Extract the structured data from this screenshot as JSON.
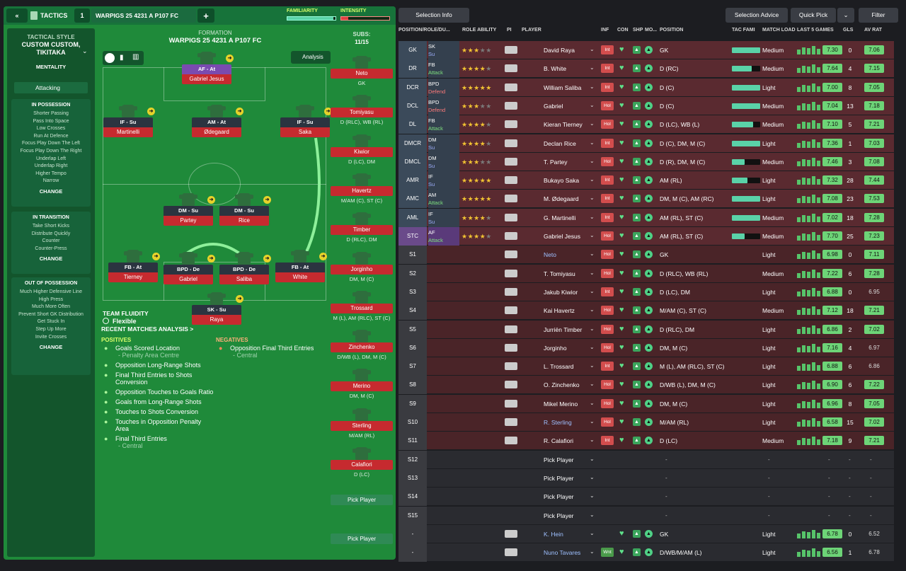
{
  "header": {
    "back": "«",
    "tactics_label": "TACTICS",
    "slot": "1",
    "tactic_name": "WARPIGS 25 4231  A P107 FC",
    "add": "+",
    "familiarity_label": "FAMILIARITY",
    "intensity_label": "INTENSITY",
    "familiarity_level": 0.95,
    "intensity_level": 0.15
  },
  "sidebar": {
    "style_title": "TACTICAL STYLE",
    "style_name": "CUSTOM CUSTOM, TIKITAKA",
    "mentality_label": "MENTALITY",
    "mentality_value": "Attacking",
    "in_possession": {
      "title": "IN POSSESSION",
      "items": [
        "Shorter Passing",
        "Pass Into Space",
        "Low Crosses",
        "Run At Defence",
        "Focus Play Down The Left",
        "Focus Play Down The Right",
        "Underlap Left",
        "Underlap Right",
        "Higher Tempo",
        "Narrow"
      ],
      "change": "CHANGE"
    },
    "in_transition": {
      "title": "IN TRANSITION",
      "items": [
        "Take Short Kicks",
        "Distribute Quickly",
        "Counter",
        "Counter-Press"
      ],
      "change": "CHANGE"
    },
    "out_of_possession": {
      "title": "OUT OF POSSESSION",
      "items": [
        "Much Higher Defensive Line",
        "High Press",
        "Much More Often",
        "Prevent Short GK Distribution",
        "Get Stuck In",
        "Step Up More",
        "Invite Crosses"
      ],
      "change": "CHANGE"
    }
  },
  "formation": {
    "label": "FORMATION",
    "name": "WARPIGS 25 4231  A P107 FC",
    "analysis": "Analysis",
    "subs_label": "SUBS:",
    "subs_count": "11/15",
    "fluidity_label": "TEAM FLUIDITY",
    "fluidity_value": "Flexible"
  },
  "pitch_players": [
    {
      "role": "AF - At",
      "name": "Gabriel Jesus"
    },
    {
      "role": "IF - Su",
      "name": "Martinelli"
    },
    {
      "role": "AM - At",
      "name": "Ødegaard"
    },
    {
      "role": "IF - Su",
      "name": "Saka"
    },
    {
      "role": "DM - Su",
      "name": "Partey"
    },
    {
      "role": "DM - Su",
      "name": "Rice"
    },
    {
      "role": "FB - At",
      "name": "Tierney"
    },
    {
      "role": "BPD - De",
      "name": "Gabriel"
    },
    {
      "role": "BPD - De",
      "name": "Saliba"
    },
    {
      "role": "FB - At",
      "name": "White"
    },
    {
      "role": "SK - Su",
      "name": "Raya"
    }
  ],
  "subs": [
    {
      "name": "Neto",
      "pos": "GK"
    },
    {
      "name": "Tomiyasu",
      "pos": "D (RLC), WB (RL)"
    },
    {
      "name": "Kiwior",
      "pos": "D (LC), DM"
    },
    {
      "name": "Havertz",
      "pos": "M/AM (C), ST (C)"
    },
    {
      "name": "Timber",
      "pos": "D (RLC), DM"
    },
    {
      "name": "Jorginho",
      "pos": "DM, M (C)"
    },
    {
      "name": "Trossard",
      "pos": "M (L), AM (RLC), ST (C)"
    },
    {
      "name": "Zinchenko",
      "pos": "D/WB (L), DM, M (C)"
    },
    {
      "name": "Merino",
      "pos": "DM, M (C)"
    },
    {
      "name": "Sterling",
      "pos": "M/AM (RL)"
    },
    {
      "name": "Calafiori",
      "pos": "D (LC)"
    }
  ],
  "pick_player": "Pick Player",
  "analysis": {
    "title": "RECENT MATCHES ANALYSIS >",
    "positives_label": "POSITIVES",
    "positives": [
      {
        "t": "Goals Scored Location",
        "s": "- Penalty Area Centre"
      },
      {
        "t": "Opposition Long-Range Shots",
        "s": ""
      },
      {
        "t": "Final Third Entries to Shots Conversion",
        "s": ""
      },
      {
        "t": "Opposition Touches to Goals Ratio",
        "s": ""
      },
      {
        "t": "Goals from Long-Range Shots",
        "s": ""
      },
      {
        "t": "Touches to Shots Conversion",
        "s": ""
      },
      {
        "t": "Touches in Opposition Penalty Area",
        "s": ""
      },
      {
        "t": "Final Third Entries",
        "s": "- Central"
      }
    ],
    "negatives_label": "NEGATIVES",
    "negatives": [
      {
        "t": "Opposition Final Third Entries",
        "s": "- Central"
      }
    ]
  },
  "toolbar": {
    "selection_info": "Selection Info",
    "selection_advice": "Selection Advice",
    "quick_pick": "Quick Pick",
    "filter": "Filter"
  },
  "columns": [
    "POSITION/ROLE/DU...",
    "ROLE ABILITY",
    "PI",
    "PLAYER",
    "INF",
    "CON",
    "SHP",
    "MO...",
    "POSITION",
    "TAC FAMI",
    "MATCH LOAD",
    "LAST 5 GAMES",
    "GLS",
    "AV RAT"
  ],
  "rows": [
    {
      "pos": "GK",
      "role": "SK",
      "duty": "Su",
      "stars": 3,
      "player": "David Raya",
      "inf": "Int",
      "position": "GK",
      "fam": 1.0,
      "load": "Medium",
      "rating": "7.30",
      "gls": "0",
      "av": "7.06"
    },
    {
      "pos": "DR",
      "role": "FB",
      "duty": "Attack",
      "stars": 4,
      "player": "B. White",
      "inf": "Int",
      "position": "D (RC)",
      "fam": 0.7,
      "load": "Medium",
      "rating": "7.64",
      "gls": "4",
      "av": "7.15"
    },
    {
      "pos": "DCR",
      "role": "BPD",
      "duty": "Defend",
      "stars": 5,
      "player": "William Saliba",
      "inf": "Int",
      "position": "D (C)",
      "fam": 1.0,
      "load": "Light",
      "rating": "7.00",
      "gls": "8",
      "av": "7.05"
    },
    {
      "pos": "DCL",
      "role": "BPD",
      "duty": "Defend",
      "stars": 3,
      "player": "Gabriel",
      "inf": "Hol",
      "position": "D (C)",
      "fam": 1.0,
      "load": "Medium",
      "rating": "7.04",
      "gls": "13",
      "av": "7.18"
    },
    {
      "pos": "DL",
      "role": "FB",
      "duty": "Attack",
      "stars": 4,
      "player": "Kieran Tierney",
      "inf": "Hol",
      "position": "D (LC), WB (L)",
      "fam": 0.75,
      "load": "Medium",
      "rating": "7.10",
      "gls": "5",
      "av": "7.21"
    },
    {
      "pos": "DMCR",
      "role": "DM",
      "duty": "Su",
      "stars": 4,
      "player": "Declan Rice",
      "inf": "Int",
      "position": "D (C), DM, M (C)",
      "fam": 1.0,
      "load": "Light",
      "rating": "7.36",
      "gls": "1",
      "av": "7.03"
    },
    {
      "pos": "DMCL",
      "role": "DM",
      "duty": "Su",
      "stars": 3,
      "player": "T. Partey",
      "inf": "Hol",
      "position": "D (R), DM, M (C)",
      "fam": 0.45,
      "load": "Medium",
      "rating": "7.46",
      "gls": "3",
      "av": "7.08"
    },
    {
      "pos": "AMR",
      "role": "IF",
      "duty": "Su",
      "stars": 5,
      "player": "Bukayo Saka",
      "inf": "Int",
      "position": "AM (RL)",
      "fam": 0.55,
      "load": "Light",
      "rating": "7.32",
      "gls": "28",
      "av": "7.44"
    },
    {
      "pos": "AMC",
      "role": "AM",
      "duty": "Attack",
      "stars": 5,
      "player": "M. Ødegaard",
      "inf": "Int",
      "position": "DM, M (C), AM (RC)",
      "fam": 1.0,
      "load": "Light",
      "rating": "7.08",
      "gls": "23",
      "av": "7.53"
    },
    {
      "pos": "AML",
      "role": "IF",
      "duty": "Su",
      "stars": 4,
      "player": "G. Martinelli",
      "inf": "Int",
      "position": "AM (RL), ST (C)",
      "fam": 1.0,
      "load": "Medium",
      "rating": "7.02",
      "gls": "18",
      "av": "7.28"
    },
    {
      "pos": "STC",
      "role": "AF",
      "duty": "Attack",
      "stars": 4,
      "player": "Gabriel Jesus",
      "inf": "Hol",
      "position": "AM (RL), ST (C)",
      "fam": 0.45,
      "load": "Medium",
      "rating": "7.70",
      "gls": "25",
      "av": "7.23"
    },
    {
      "pos": "S1",
      "player": "Neto",
      "inf": "Hol",
      "position": "GK",
      "load": "Light",
      "rating": "6.98",
      "gls": "0",
      "av": "7.11"
    },
    {
      "pos": "S2",
      "player": "T. Tomiyasu",
      "inf": "Hol",
      "position": "D (RLC), WB (RL)",
      "load": "Medium",
      "rating": "7.22",
      "gls": "6",
      "av": "7.28"
    },
    {
      "pos": "S3",
      "player": "Jakub Kiwior",
      "inf": "Int",
      "position": "D (LC), DM",
      "load": "Light",
      "rating": "6.88",
      "gls": "0",
      "av": "6.95"
    },
    {
      "pos": "S4",
      "player": "Kai Havertz",
      "inf": "Hol",
      "position": "M/AM (C), ST (C)",
      "load": "Medium",
      "rating": "7.12",
      "gls": "18",
      "av": "7.21"
    },
    {
      "pos": "S5",
      "player": "Jurriën Timber",
      "inf": "Hol",
      "position": "D (RLC), DM",
      "load": "Light",
      "rating": "6.86",
      "gls": "2",
      "av": "7.02"
    },
    {
      "pos": "S6",
      "player": "Jorginho",
      "inf": "Hol",
      "position": "DM, M (C)",
      "load": "Light",
      "rating": "7.16",
      "gls": "4",
      "av": "6.97"
    },
    {
      "pos": "S7",
      "player": "L. Trossard",
      "inf": "Int",
      "position": "M (L), AM (RLC), ST (C)",
      "load": "Light",
      "rating": "6.88",
      "gls": "6",
      "av": "6.86"
    },
    {
      "pos": "S8",
      "player": "O. Zinchenko",
      "inf": "Hol",
      "position": "D/WB (L), DM, M (C)",
      "load": "Light",
      "rating": "6.90",
      "gls": "6",
      "av": "7.22"
    },
    {
      "pos": "S9",
      "player": "Mikel Merino",
      "inf": "Hol",
      "position": "DM, M (C)",
      "load": "Light",
      "rating": "6.96",
      "gls": "8",
      "av": "7.05"
    },
    {
      "pos": "S10",
      "player": "R. Sterling",
      "inf": "Hol",
      "position": "M/AM (RL)",
      "load": "Light",
      "rating": "6.58",
      "gls": "15",
      "av": "7.02"
    },
    {
      "pos": "S11",
      "player": "R. Calafiori",
      "inf": "Int",
      "position": "D (LC)",
      "load": "Medium",
      "rating": "7.18",
      "gls": "9",
      "av": "7.21"
    },
    {
      "pos": "S12",
      "pick": true
    },
    {
      "pos": "S13",
      "pick": true
    },
    {
      "pos": "S14",
      "pick": true
    },
    {
      "pos": "S15",
      "pick": true
    },
    {
      "pos": "-",
      "player": "K. Hein",
      "inf": "",
      "position": "GK",
      "load": "Light",
      "rating": "6.78",
      "gls": "0",
      "av": "6.52",
      "reserve": true
    },
    {
      "pos": "-",
      "player": "Nuno Tavares",
      "inf": "Wnt",
      "position": "D/WB/M/AM (L)",
      "load": "Light",
      "rating": "6.56",
      "gls": "1",
      "av": "6.78",
      "reserve": true
    }
  ],
  "dash": "-",
  "colors": {
    "pitch": "#1f8a3a",
    "starter_row": "#5a2a30",
    "sub_row": "#4a2428",
    "empty_row": "#2a2b30",
    "rating": "#6dd477"
  }
}
